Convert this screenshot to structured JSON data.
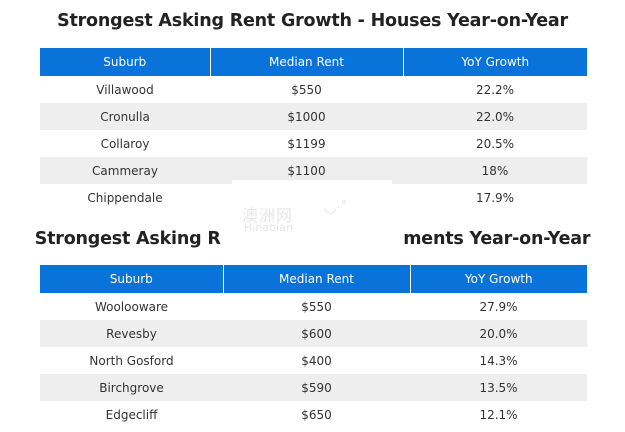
{
  "table1": {
    "title": "Strongest Asking Rent Growth - Houses Year-on-Year",
    "headers": [
      "Suburb",
      "Median Rent",
      "YoY Growth"
    ],
    "rows": [
      {
        "suburb": "Villawood",
        "rent": "$550",
        "growth": "22.2%"
      },
      {
        "suburb": "Cronulla",
        "rent": "$1000",
        "growth": "22.0%"
      },
      {
        "suburb": "Collaroy",
        "rent": "$1199",
        "growth": "20.5%"
      },
      {
        "suburb": "Cammeray",
        "rent": "$1100",
        "growth": "18%"
      },
      {
        "suburb": "Chippendale",
        "rent": "",
        "growth": "17.9%"
      }
    ]
  },
  "table2": {
    "title": "Strongest Asking R                               ments Year-on-Year",
    "headers": [
      "Suburb",
      "Median Rent",
      "YoY Growth"
    ],
    "rows": [
      {
        "suburb": "Woolooware",
        "rent": "$550",
        "growth": "27.9%"
      },
      {
        "suburb": "Revesby",
        "rent": "$600",
        "growth": "20.0%"
      },
      {
        "suburb": "North Gosford",
        "rent": "$400",
        "growth": "14.3%"
      },
      {
        "suburb": "Birchgrove",
        "rent": "$590",
        "growth": "13.5%"
      },
      {
        "suburb": "Edgecliff",
        "rent": "$650",
        "growth": "12.1%"
      }
    ]
  },
  "watermark": {
    "cn": "澳洲网",
    "en": "Hinabian",
    "mark": "◡·˚"
  }
}
